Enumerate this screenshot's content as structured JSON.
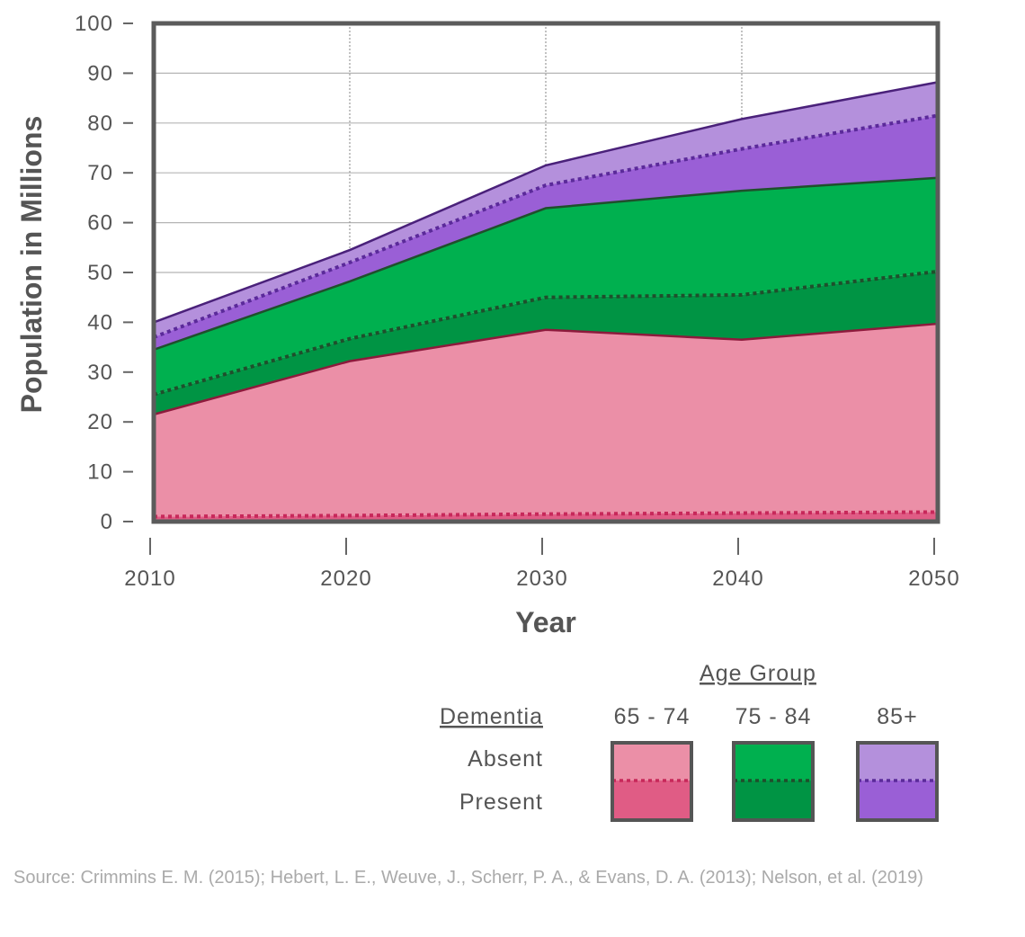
{
  "chart_data": {
    "type": "area",
    "x": [
      2010,
      2020,
      2030,
      2040,
      2050
    ],
    "xlabel": "Year",
    "ylabel": "Population in Millions",
    "ylim": [
      0,
      100
    ],
    "yticks": [
      0,
      10,
      20,
      30,
      40,
      50,
      60,
      70,
      80,
      90,
      100
    ],
    "stacked": true,
    "series": [
      {
        "name": "65 - 74 Present",
        "age_group": "65 - 74",
        "dementia": "Present",
        "color": "#e05c85",
        "values": [
          1.0,
          1.2,
          1.5,
          1.7,
          1.9
        ]
      },
      {
        "name": "65 - 74 Absent",
        "age_group": "65 - 74",
        "dementia": "Absent",
        "color": "#eb8fa7",
        "values": [
          20.5,
          31.0,
          37.0,
          34.8,
          37.8
        ]
      },
      {
        "name": "75 - 84 Present",
        "age_group": "75 - 84",
        "dementia": "Present",
        "color": "#009444",
        "values": [
          4.0,
          4.5,
          6.5,
          9.0,
          10.5
        ]
      },
      {
        "name": "75 - 84 Absent",
        "age_group": "75 - 84",
        "dementia": "Absent",
        "color": "#00b04f",
        "values": [
          9.0,
          11.5,
          17.9,
          20.9,
          18.8
        ]
      },
      {
        "name": "85+ Present",
        "age_group": "85+",
        "dementia": "Present",
        "color": "#9a5fd6",
        "values": [
          2.5,
          3.8,
          4.6,
          8.4,
          12.5
        ]
      },
      {
        "name": "85+ Absent",
        "age_group": "85+",
        "dementia": "Absent",
        "color": "#b490dc",
        "values": [
          3.0,
          2.5,
          4.0,
          6.0,
          6.7
        ]
      }
    ],
    "legend": {
      "title": "Age Group",
      "row_header": "Dementia",
      "groups": [
        "65 - 74",
        "75 - 84",
        "85+"
      ],
      "rows": [
        "Absent",
        "Present"
      ]
    }
  },
  "source": "Source: Crimmins E. M. (2015); Hebert, L. E., Weuve, J., Scherr, P. A., & Evans, D. A. (2013); Nelson, et al. (2019)"
}
